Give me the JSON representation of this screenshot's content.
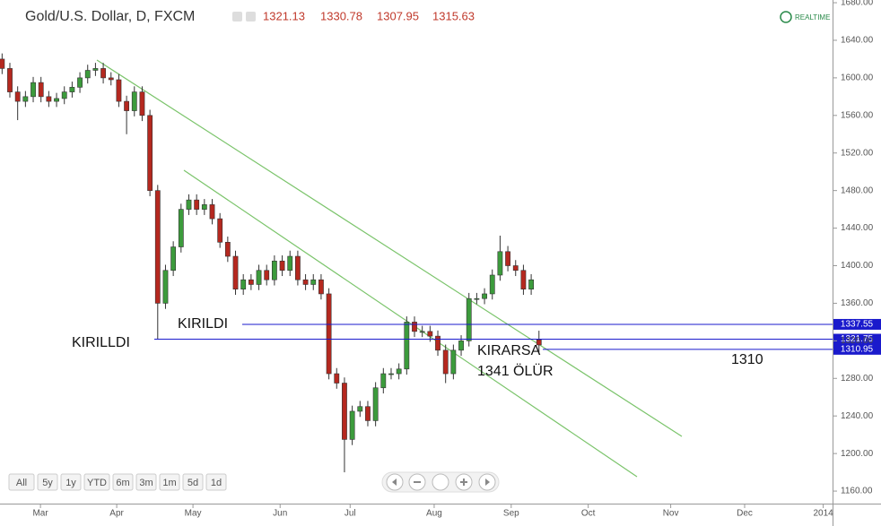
{
  "chart_data": {
    "type": "candlestick",
    "title": "Gold/U.S. Dollar, D, FXCM",
    "realtime_label": "REALTIME",
    "series": [
      {
        "open": [
          1620,
          1610,
          1585,
          1575,
          1580,
          1595,
          1580,
          1575,
          1578,
          1585,
          1590,
          1600,
          1608,
          1610,
          1600,
          1598,
          1575,
          1565,
          1585,
          1560,
          1480,
          1360,
          1395,
          1420,
          1460,
          1470,
          1460,
          1465,
          1450,
          1425,
          1410,
          1375,
          1385,
          1380,
          1395,
          1385,
          1405,
          1395,
          1410,
          1385,
          1380,
          1385,
          1370,
          1285,
          1275,
          1215,
          1245,
          1250,
          1235,
          1270,
          1285,
          1285,
          1290,
          1340,
          1330,
          1330,
          1325,
          1310,
          1285,
          1310,
          1320,
          1365,
          1365,
          1370,
          1390,
          1415,
          1400,
          1395,
          1375,
          1321.13
        ],
        "high": [
          1626,
          1616,
          1591,
          1586,
          1601,
          1601,
          1586,
          1584,
          1591,
          1596,
          1606,
          1614,
          1616,
          1616,
          1606,
          1604,
          1581,
          1591,
          1591,
          1566,
          1486,
          1401,
          1426,
          1466,
          1476,
          1476,
          1471,
          1471,
          1456,
          1431,
          1416,
          1391,
          1391,
          1401,
          1401,
          1411,
          1411,
          1416,
          1416,
          1391,
          1391,
          1391,
          1376,
          1291,
          1281,
          1251,
          1256,
          1256,
          1276,
          1291,
          1291,
          1296,
          1346,
          1346,
          1336,
          1336,
          1331,
          1316,
          1316,
          1326,
          1371,
          1371,
          1376,
          1396,
          1432,
          1421,
          1406,
          1401,
          1391,
          1330.78
        ],
        "low": [
          1604,
          1579,
          1555,
          1569,
          1574,
          1574,
          1569,
          1569,
          1572,
          1579,
          1584,
          1594,
          1602,
          1594,
          1592,
          1569,
          1540,
          1559,
          1554,
          1474,
          1322,
          1354,
          1389,
          1414,
          1454,
          1454,
          1454,
          1444,
          1419,
          1404,
          1369,
          1369,
          1374,
          1374,
          1379,
          1379,
          1389,
          1389,
          1379,
          1374,
          1374,
          1364,
          1279,
          1269,
          1180,
          1209,
          1239,
          1229,
          1229,
          1264,
          1279,
          1279,
          1284,
          1324,
          1324,
          1319,
          1304,
          1275,
          1279,
          1304,
          1314,
          1359,
          1359,
          1364,
          1384,
          1394,
          1389,
          1369,
          1369,
          1307.95
        ],
        "close": [
          1610,
          1585,
          1575,
          1580,
          1595,
          1580,
          1575,
          1578,
          1585,
          1590,
          1600,
          1608,
          1610,
          1600,
          1598,
          1575,
          1565,
          1585,
          1560,
          1480,
          1360,
          1395,
          1420,
          1460,
          1470,
          1460,
          1465,
          1450,
          1425,
          1410,
          1375,
          1385,
          1380,
          1395,
          1385,
          1405,
          1395,
          1410,
          1385,
          1380,
          1385,
          1370,
          1285,
          1275,
          1215,
          1245,
          1250,
          1235,
          1270,
          1285,
          1285,
          1290,
          1340,
          1330,
          1330,
          1325,
          1310,
          1285,
          1310,
          1320,
          1365,
          1365,
          1370,
          1390,
          1415,
          1400,
          1395,
          1375,
          1385,
          1315.63
        ],
        "up_color": "#3c9b3c",
        "down_color": "#b5281f"
      }
    ],
    "ylim": [
      1148.6,
      1682.9
    ],
    "yticks": [
      {
        "value": 1160,
        "label": "1160.00"
      },
      {
        "value": 1200,
        "label": "1200.00"
      },
      {
        "value": 1240,
        "label": "1240.00"
      },
      {
        "value": 1280,
        "label": "1280.00"
      },
      {
        "value": 1320,
        "label": "1320.00"
      },
      {
        "value": 1360,
        "label": "1360.00"
      },
      {
        "value": 1400,
        "label": "1400.00"
      },
      {
        "value": 1440,
        "label": "1440.00"
      },
      {
        "value": 1480,
        "label": "1480.00"
      },
      {
        "value": 1520,
        "label": "1520.00"
      },
      {
        "value": 1560,
        "label": "1560.00"
      },
      {
        "value": 1600,
        "label": "1600.00"
      },
      {
        "value": 1640,
        "label": "1640.00"
      },
      {
        "value": 1680,
        "label": "1680.00"
      }
    ],
    "xlim": [
      0,
      107
    ],
    "xticks": [
      {
        "value": 5.2,
        "label": "Mar"
      },
      {
        "value": 15.0,
        "label": "Apr"
      },
      {
        "value": 24.8,
        "label": "May"
      },
      {
        "value": 36.0,
        "label": "Jun"
      },
      {
        "value": 45.0,
        "label": "Jul"
      },
      {
        "value": 55.8,
        "label": "Aug"
      },
      {
        "value": 65.7,
        "label": "Sep"
      },
      {
        "value": 75.6,
        "label": "Oct"
      },
      {
        "value": 86.2,
        "label": "Nov"
      },
      {
        "value": 95.7,
        "label": "Dec"
      },
      {
        "value": 105.8,
        "label": "2014"
      }
    ],
    "hlines": [
      {
        "value": 1337.55,
        "color": "#1a1acc"
      },
      {
        "value": 1321.75,
        "color": "#1a1acc"
      },
      {
        "value": 1310.95,
        "color": "#1a1acc"
      }
    ],
    "annotations": [
      "KIRILDI",
      "KIRILLDI",
      "KIRARSA",
      "1341 ÖLÜR",
      "1310"
    ],
    "range_buttons": [
      "All",
      "5y",
      "1y",
      "YTD",
      "6m",
      "3m",
      "1m",
      "5d",
      "1d"
    ]
  }
}
